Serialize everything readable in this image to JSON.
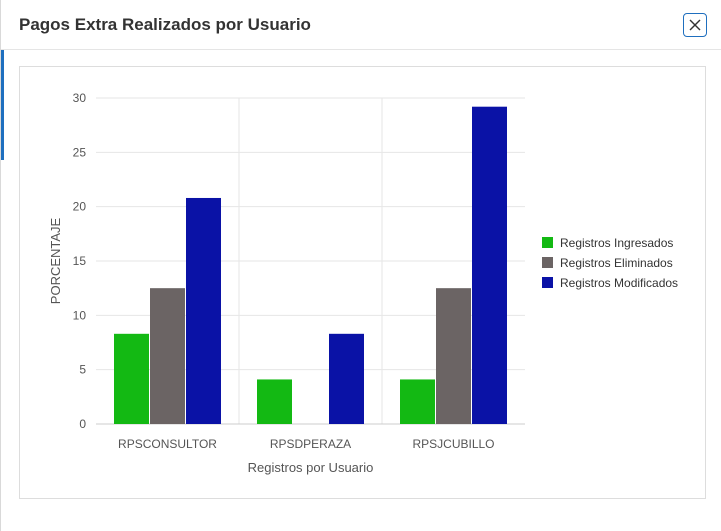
{
  "modal": {
    "title": "Pagos Extra Realizados por Usuario",
    "close_icon": "close-icon"
  },
  "colors": {
    "ingresados": "#13b913",
    "eliminados": "#6b6464",
    "modificados": "#0a12a6",
    "grid": "#e6e6e6",
    "axis_text": "#555555"
  },
  "chart_data": {
    "type": "bar",
    "categories": [
      "RPSCONSULTOR",
      "RPSDPERAZA",
      "RPSJCUBILLO"
    ],
    "series": [
      {
        "name": "Registros Ingresados",
        "values": [
          8.3,
          4.1,
          4.1
        ]
      },
      {
        "name": "Registros Eliminados",
        "values": [
          12.5,
          0,
          12.5
        ]
      },
      {
        "name": "Registros Modificados",
        "values": [
          20.8,
          8.3,
          29.2
        ]
      }
    ],
    "xlabel": "Registros por Usuario",
    "ylabel": "PORCENTAJE",
    "ylim": [
      0,
      30
    ],
    "yticks": [
      0,
      5,
      10,
      15,
      20,
      25,
      30
    ],
    "grid": true,
    "legend_position": "right"
  }
}
